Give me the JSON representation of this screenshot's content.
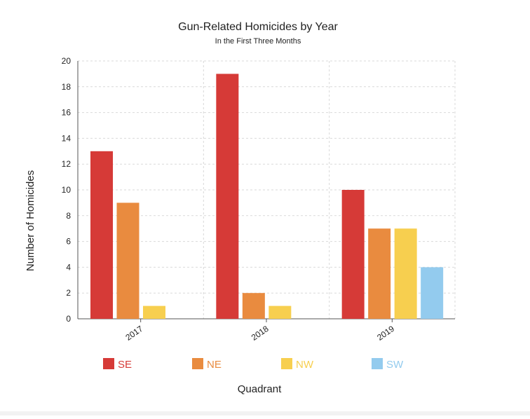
{
  "chart_data": {
    "type": "bar",
    "title": "Gun-Related Homicides by Year",
    "subtitle": "In the First Three Months",
    "xlabel": "Quadrant",
    "ylabel": "Number of Homicides",
    "categories": [
      "2017",
      "2018",
      "2019"
    ],
    "ylim": [
      0,
      20
    ],
    "yticks": [
      "0",
      "2",
      "4",
      "6",
      "8",
      "10",
      "12",
      "14",
      "16",
      "18",
      "20"
    ],
    "grid": true,
    "legend_position": "bottom",
    "series": [
      {
        "name": "SE",
        "color": "#d63a37",
        "values": [
          13,
          19,
          10
        ]
      },
      {
        "name": "NE",
        "color": "#e98b3f",
        "values": [
          9,
          2,
          7
        ]
      },
      {
        "name": "NW",
        "color": "#f7cf4f",
        "values": [
          1,
          1,
          7
        ]
      },
      {
        "name": "SW",
        "color": "#93cbee",
        "values": [
          null,
          null,
          4
        ]
      }
    ]
  }
}
